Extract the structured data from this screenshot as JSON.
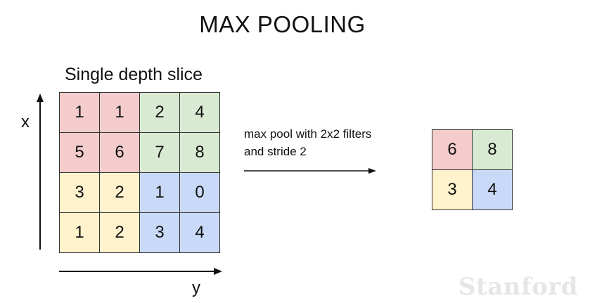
{
  "title": "MAX POOLING",
  "subtitle": "Single depth slice",
  "axis": {
    "x_label": "x",
    "y_label": "y"
  },
  "description": {
    "line1": "max pool with 2x2 filters",
    "line2": "and stride 2"
  },
  "input_matrix": [
    [
      1,
      1,
      2,
      4
    ],
    [
      5,
      6,
      7,
      8
    ],
    [
      3,
      2,
      1,
      0
    ],
    [
      1,
      2,
      3,
      4
    ]
  ],
  "output_matrix": [
    [
      6,
      8
    ],
    [
      3,
      4
    ]
  ],
  "colors": {
    "top_left": "#f4cccc",
    "top_right": "#d9ead3",
    "bottom_left": "#fff2cc",
    "bottom_right": "#c9daf8"
  },
  "watermark": "Stanford"
}
